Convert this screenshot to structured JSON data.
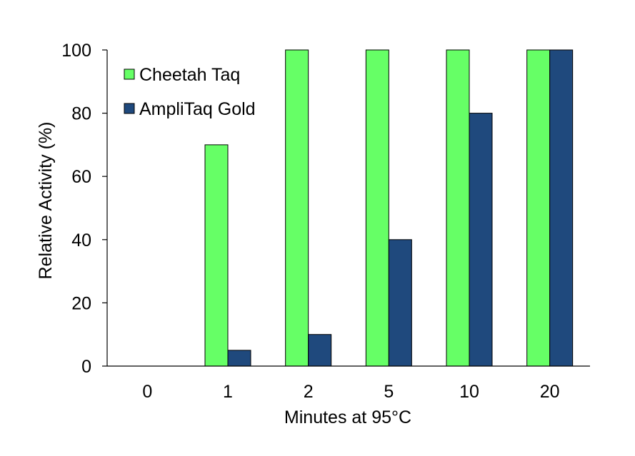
{
  "chart_data": {
    "type": "bar",
    "title": "",
    "categories": [
      "0",
      "1",
      "2",
      "5",
      "10",
      "20"
    ],
    "series": [
      {
        "name": "Cheetah Taq",
        "color": "#66ff66",
        "values": [
          0,
          70,
          100,
          100,
          100,
          100
        ]
      },
      {
        "name": "AmpliTaq Gold",
        "color": "#1f497d",
        "values": [
          0,
          5,
          10,
          40,
          80,
          100
        ]
      }
    ],
    "xlabel": "Minutes at 95",
    "xlabel_suffix": "°C",
    "ylabel": "Relative Activity  (%)",
    "ylim": [
      0,
      100
    ],
    "yticks": [
      0,
      20,
      40,
      60,
      80,
      100
    ],
    "grid": false,
    "legend_position": "top-left"
  }
}
